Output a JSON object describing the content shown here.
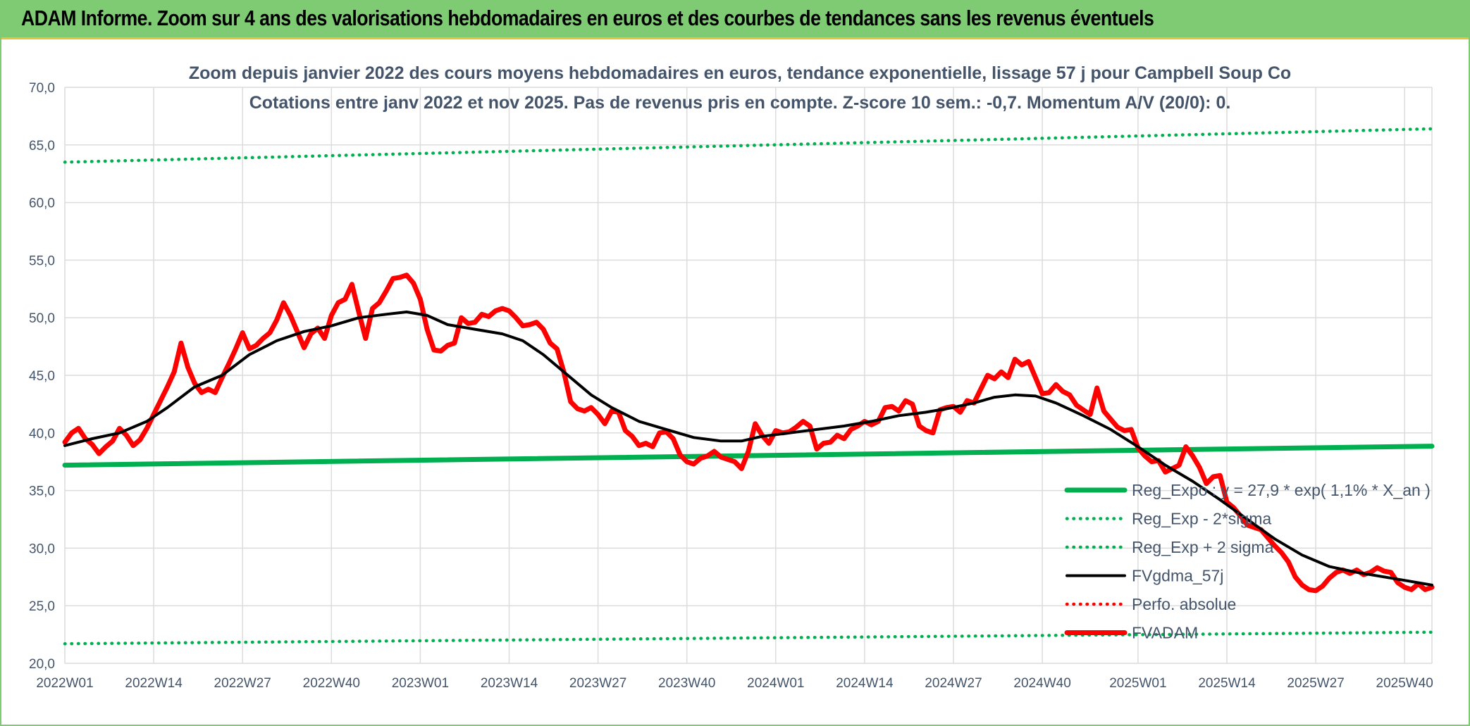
{
  "banner": {
    "title": "ADAM Informe. Zoom sur 4 ans des valorisations hebdomadaires en euros et des courbes de tendances sans les revenus éventuels"
  },
  "colors": {
    "banner_bg": "#7ecb74",
    "banner_accent": "#e8c23a",
    "reg_green": "#00b050",
    "red": "#ff0000",
    "black": "#000000",
    "text": "#44546a",
    "grid": "#dcdcdc"
  },
  "chart_data": {
    "type": "line",
    "title_lines": [
      "Zoom depuis janvier 2022 des cours moyens hebdomadaires en euros, tendance exponentielle, lissage 57 j pour Campbell Soup Co",
      "Cotations entre janv 2022 et nov 2025. Pas de revenus pris en compte. Z-score 10 sem.: -0,7. Momentum A/V (20/0): 0."
    ],
    "ylim": [
      20,
      70
    ],
    "y_ticks": [
      "20,0",
      "25,0",
      "30,0",
      "35,0",
      "40,0",
      "45,0",
      "50,0",
      "55,0",
      "60,0",
      "65,0",
      "70,0"
    ],
    "x_range_weeks": [
      0,
      200
    ],
    "x_ticks": [
      {
        "label": "2022W01",
        "week": 0
      },
      {
        "label": "2022W14",
        "week": 13
      },
      {
        "label": "2022W27",
        "week": 26
      },
      {
        "label": "2022W40",
        "week": 39
      },
      {
        "label": "2023W01",
        "week": 52
      },
      {
        "label": "2023W14",
        "week": 65
      },
      {
        "label": "2023W27",
        "week": 78
      },
      {
        "label": "2023W40",
        "week": 91
      },
      {
        "label": "2024W01",
        "week": 104
      },
      {
        "label": "2024W14",
        "week": 117
      },
      {
        "label": "2024W27",
        "week": 130
      },
      {
        "label": "2024W40",
        "week": 143
      },
      {
        "label": "2025W01",
        "week": 157
      },
      {
        "label": "2025W14",
        "week": 170
      },
      {
        "label": "2025W27",
        "week": 183
      },
      {
        "label": "2025W40",
        "week": 196
      }
    ],
    "series": [
      {
        "name": "Reg_Expo : y = 27,9 * exp( 1,1% *  X_an )",
        "style": "solid-thick",
        "color": "#00b050",
        "points": [
          [
            0,
            37.2
          ],
          [
            200,
            38.85
          ]
        ]
      },
      {
        "name": "Reg_Exp - 2*sigma",
        "style": "dotted",
        "color": "#00b050",
        "points": [
          [
            0,
            21.7
          ],
          [
            200,
            22.7
          ]
        ]
      },
      {
        "name": "Reg_Exp + 2 sigma",
        "style": "dotted",
        "color": "#00b050",
        "points": [
          [
            0,
            63.5
          ],
          [
            200,
            66.4
          ]
        ]
      },
      {
        "name": "FVgdma_57j",
        "style": "solid",
        "color": "#000000",
        "points": [
          [
            0,
            38.9
          ],
          [
            4,
            39.5
          ],
          [
            8,
            40.0
          ],
          [
            12,
            41.0
          ],
          [
            15,
            42.2
          ],
          [
            19,
            44.0
          ],
          [
            23,
            45.0
          ],
          [
            27,
            46.8
          ],
          [
            31,
            48.0
          ],
          [
            35,
            48.8
          ],
          [
            39,
            49.3
          ],
          [
            43,
            50.0
          ],
          [
            47,
            50.3
          ],
          [
            50,
            50.5
          ],
          [
            53,
            50.2
          ],
          [
            56,
            49.4
          ],
          [
            60,
            49.0
          ],
          [
            64,
            48.6
          ],
          [
            67,
            48.0
          ],
          [
            70,
            46.8
          ],
          [
            74,
            44.8
          ],
          [
            77,
            43.3
          ],
          [
            80,
            42.2
          ],
          [
            84,
            41.0
          ],
          [
            88,
            40.3
          ],
          [
            92,
            39.6
          ],
          [
            96,
            39.3
          ],
          [
            99,
            39.3
          ],
          [
            102,
            39.7
          ],
          [
            106,
            40.0
          ],
          [
            110,
            40.3
          ],
          [
            114,
            40.6
          ],
          [
            118,
            41.0
          ],
          [
            122,
            41.5
          ],
          [
            126,
            41.8
          ],
          [
            129,
            42.1
          ],
          [
            133,
            42.6
          ],
          [
            136,
            43.1
          ],
          [
            139,
            43.3
          ],
          [
            142,
            43.2
          ],
          [
            145,
            42.6
          ],
          [
            149,
            41.5
          ],
          [
            153,
            40.3
          ],
          [
            157,
            38.8
          ],
          [
            161,
            37.2
          ],
          [
            165,
            35.8
          ],
          [
            169,
            34.2
          ],
          [
            173,
            32.5
          ],
          [
            177,
            30.8
          ],
          [
            181,
            29.4
          ],
          [
            185,
            28.4
          ],
          [
            189,
            27.9
          ],
          [
            193,
            27.5
          ],
          [
            196,
            27.2
          ],
          [
            200,
            26.8
          ]
        ]
      },
      {
        "name": "Perfo. absolue",
        "style": "dotted",
        "color": "#ff0000",
        "points": []
      },
      {
        "name": "FVADAM",
        "style": "solid-thick",
        "color": "#ff0000",
        "points": [
          [
            0,
            39.2
          ],
          [
            1,
            40.0
          ],
          [
            2,
            40.4
          ],
          [
            3,
            39.5
          ],
          [
            4,
            39.0
          ],
          [
            5,
            38.2
          ],
          [
            6,
            38.8
          ],
          [
            7,
            39.3
          ],
          [
            8,
            40.4
          ],
          [
            9,
            39.8
          ],
          [
            10,
            38.9
          ],
          [
            11,
            39.4
          ],
          [
            12,
            40.4
          ],
          [
            13,
            41.6
          ],
          [
            14,
            42.8
          ],
          [
            15,
            44.0
          ],
          [
            16,
            45.3
          ],
          [
            17,
            47.8
          ],
          [
            18,
            45.7
          ],
          [
            19,
            44.3
          ],
          [
            20,
            43.5
          ],
          [
            21,
            43.8
          ],
          [
            22,
            43.5
          ],
          [
            23,
            44.8
          ],
          [
            24,
            46.0
          ],
          [
            25,
            47.3
          ],
          [
            26,
            48.7
          ],
          [
            27,
            47.3
          ],
          [
            28,
            47.6
          ],
          [
            29,
            48.2
          ],
          [
            30,
            48.7
          ],
          [
            31,
            49.8
          ],
          [
            32,
            51.3
          ],
          [
            33,
            50.2
          ],
          [
            34,
            48.8
          ],
          [
            35,
            47.4
          ],
          [
            36,
            48.6
          ],
          [
            37,
            49.1
          ],
          [
            38,
            48.2
          ],
          [
            39,
            50.2
          ],
          [
            40,
            51.3
          ],
          [
            41,
            51.6
          ],
          [
            42,
            52.9
          ],
          [
            43,
            50.5
          ],
          [
            44,
            48.2
          ],
          [
            45,
            50.8
          ],
          [
            46,
            51.3
          ],
          [
            47,
            52.3
          ],
          [
            48,
            53.4
          ],
          [
            49,
            53.5
          ],
          [
            50,
            53.7
          ],
          [
            51,
            53.0
          ],
          [
            52,
            51.6
          ],
          [
            53,
            49.0
          ],
          [
            54,
            47.2
          ],
          [
            55,
            47.1
          ],
          [
            56,
            47.6
          ],
          [
            57,
            47.8
          ],
          [
            58,
            50.0
          ],
          [
            59,
            49.5
          ],
          [
            60,
            49.6
          ],
          [
            61,
            50.3
          ],
          [
            62,
            50.1
          ],
          [
            63,
            50.6
          ],
          [
            64,
            50.8
          ],
          [
            65,
            50.6
          ],
          [
            66,
            50.0
          ],
          [
            67,
            49.3
          ],
          [
            68,
            49.4
          ],
          [
            69,
            49.6
          ],
          [
            70,
            49.0
          ],
          [
            71,
            47.8
          ],
          [
            72,
            47.3
          ],
          [
            73,
            45.3
          ],
          [
            74,
            42.7
          ],
          [
            75,
            42.1
          ],
          [
            76,
            41.9
          ],
          [
            77,
            42.2
          ],
          [
            78,
            41.6
          ],
          [
            79,
            40.8
          ],
          [
            80,
            41.9
          ],
          [
            81,
            41.8
          ],
          [
            82,
            40.2
          ],
          [
            83,
            39.7
          ],
          [
            84,
            38.9
          ],
          [
            85,
            39.1
          ],
          [
            86,
            38.8
          ],
          [
            87,
            40.0
          ],
          [
            88,
            40.1
          ],
          [
            89,
            39.5
          ],
          [
            90,
            38.1
          ],
          [
            91,
            37.5
          ],
          [
            92,
            37.3
          ],
          [
            93,
            37.8
          ],
          [
            94,
            38.0
          ],
          [
            95,
            38.4
          ],
          [
            96,
            37.9
          ],
          [
            97,
            37.7
          ],
          [
            98,
            37.5
          ],
          [
            99,
            36.9
          ],
          [
            100,
            38.4
          ],
          [
            101,
            40.8
          ],
          [
            102,
            39.8
          ],
          [
            103,
            39.1
          ],
          [
            104,
            40.2
          ],
          [
            105,
            40.0
          ],
          [
            106,
            40.1
          ],
          [
            107,
            40.5
          ],
          [
            108,
            41.0
          ],
          [
            109,
            40.6
          ],
          [
            110,
            38.6
          ],
          [
            111,
            39.1
          ],
          [
            112,
            39.2
          ],
          [
            113,
            39.8
          ],
          [
            114,
            39.5
          ],
          [
            115,
            40.3
          ],
          [
            116,
            40.6
          ],
          [
            117,
            41.0
          ],
          [
            118,
            40.7
          ],
          [
            119,
            41.0
          ],
          [
            120,
            42.2
          ],
          [
            121,
            42.3
          ],
          [
            122,
            41.9
          ],
          [
            123,
            42.8
          ],
          [
            124,
            42.5
          ],
          [
            125,
            40.6
          ],
          [
            126,
            40.2
          ],
          [
            127,
            40.0
          ],
          [
            128,
            42.0
          ],
          [
            129,
            42.2
          ],
          [
            130,
            42.3
          ],
          [
            131,
            41.8
          ],
          [
            132,
            42.8
          ],
          [
            133,
            42.6
          ],
          [
            134,
            43.8
          ],
          [
            135,
            45.0
          ],
          [
            136,
            44.7
          ],
          [
            137,
            45.3
          ],
          [
            138,
            44.8
          ],
          [
            139,
            46.4
          ],
          [
            140,
            45.9
          ],
          [
            141,
            46.2
          ],
          [
            142,
            44.8
          ],
          [
            143,
            43.4
          ],
          [
            144,
            43.5
          ],
          [
            145,
            44.2
          ],
          [
            146,
            43.6
          ],
          [
            147,
            43.3
          ],
          [
            148,
            42.4
          ],
          [
            149,
            42.0
          ],
          [
            150,
            41.6
          ],
          [
            151,
            43.9
          ],
          [
            152,
            41.9
          ],
          [
            153,
            41.2
          ],
          [
            154,
            40.5
          ],
          [
            155,
            40.2
          ],
          [
            156,
            40.3
          ],
          [
            157,
            38.7
          ],
          [
            158,
            38.0
          ],
          [
            159,
            37.5
          ],
          [
            160,
            37.6
          ],
          [
            161,
            36.6
          ],
          [
            162,
            36.9
          ],
          [
            163,
            37.2
          ],
          [
            164,
            38.8
          ],
          [
            165,
            38.0
          ],
          [
            166,
            37.0
          ],
          [
            167,
            35.6
          ],
          [
            168,
            36.2
          ],
          [
            169,
            36.3
          ],
          [
            170,
            34.0
          ],
          [
            171,
            33.5
          ],
          [
            172,
            32.8
          ],
          [
            173,
            32.0
          ],
          [
            174,
            31.8
          ],
          [
            175,
            31.6
          ],
          [
            176,
            30.9
          ],
          [
            177,
            30.2
          ],
          [
            178,
            29.6
          ],
          [
            179,
            28.8
          ],
          [
            180,
            27.5
          ],
          [
            181,
            26.8
          ],
          [
            182,
            26.4
          ],
          [
            183,
            26.3
          ],
          [
            184,
            26.7
          ],
          [
            185,
            27.4
          ],
          [
            186,
            27.9
          ],
          [
            187,
            28.1
          ],
          [
            188,
            27.8
          ],
          [
            189,
            28.1
          ],
          [
            190,
            27.7
          ],
          [
            191,
            27.9
          ],
          [
            192,
            28.3
          ],
          [
            193,
            28.0
          ],
          [
            194,
            27.9
          ],
          [
            195,
            27.0
          ],
          [
            196,
            26.6
          ],
          [
            197,
            26.4
          ],
          [
            198,
            26.9
          ],
          [
            199,
            26.4
          ],
          [
            200,
            26.6
          ]
        ]
      }
    ]
  }
}
